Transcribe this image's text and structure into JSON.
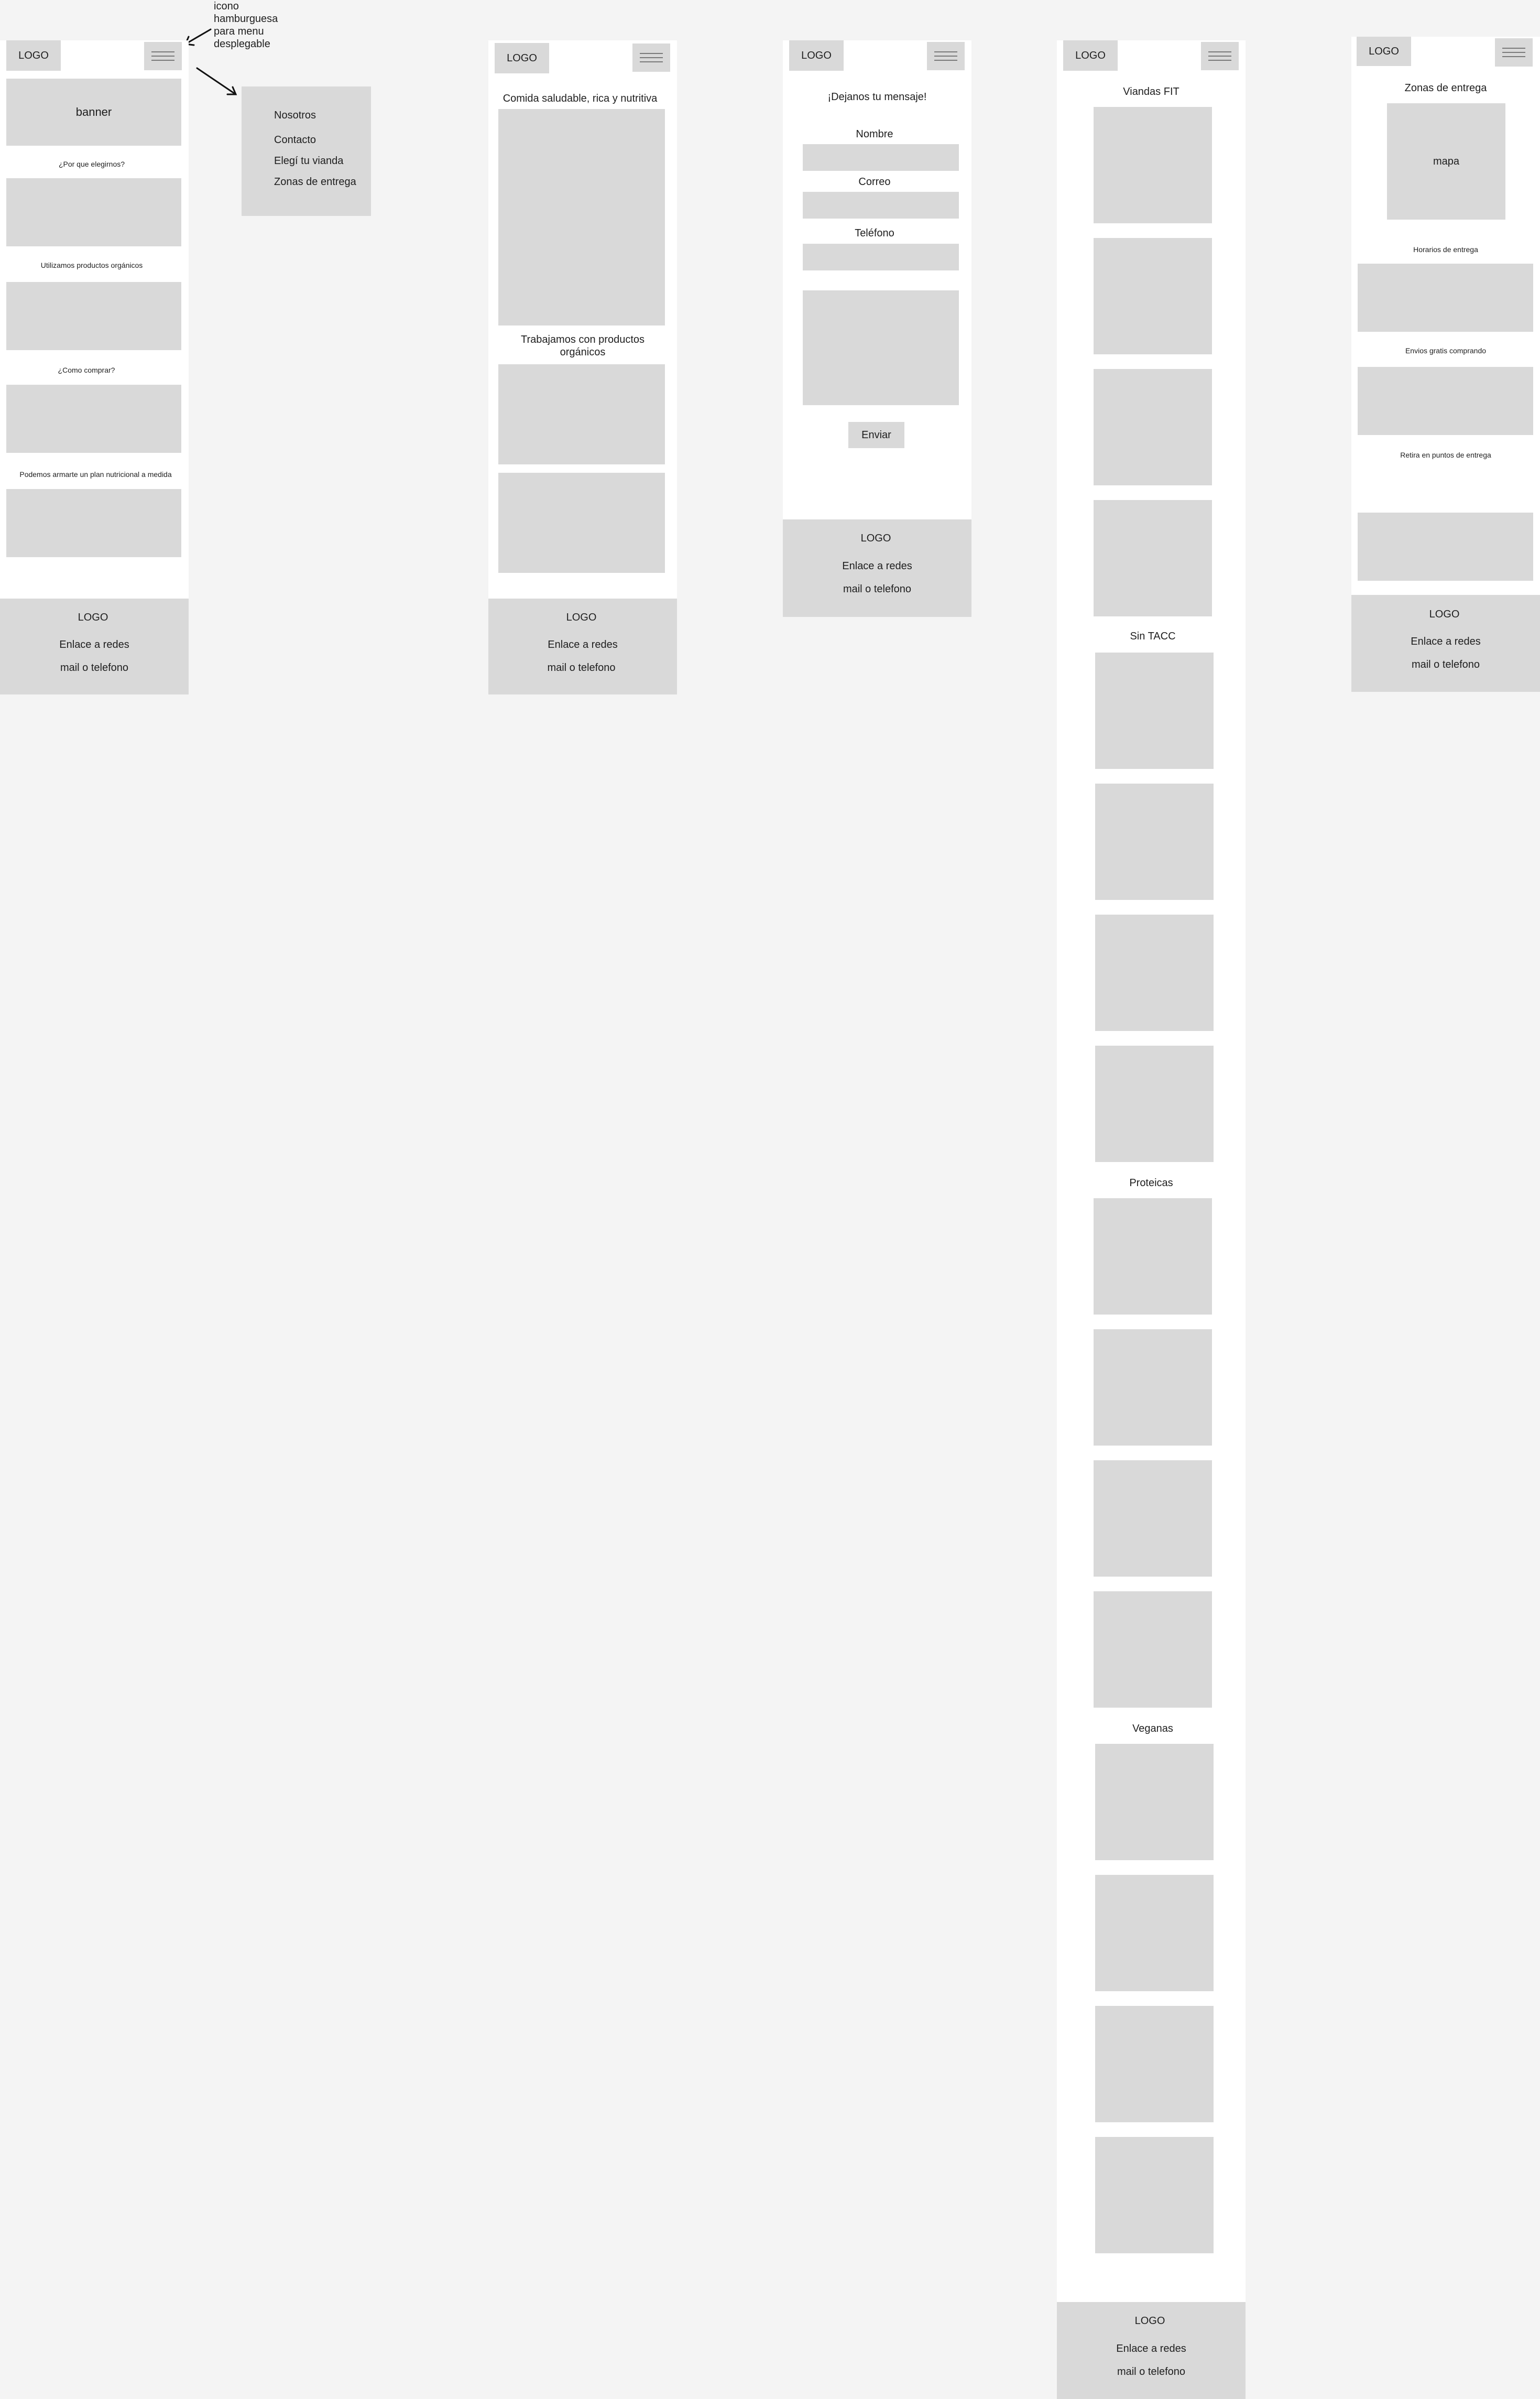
{
  "annotation": {
    "hamburger_note": [
      "icono",
      "hamburguesa",
      "para menu",
      "desplegable"
    ]
  },
  "home": {
    "logo": "LOGO",
    "banner": "banner",
    "sections": [
      "¿Por que elegirnos?",
      "Utilizamos productos orgánicos",
      "¿Como comprar?",
      "Podemos armarte un plan nutricional a medida"
    ],
    "footer": {
      "logo": "LOGO",
      "social": "Enlace a redes",
      "contact": "mail o telefono"
    }
  },
  "menu": {
    "items": [
      "Nosotros",
      "Contacto",
      "Elegí tu vianda",
      "Zonas de entrega"
    ]
  },
  "about": {
    "logo": "LOGO",
    "headline": "Comida saludable, rica y nutritiva",
    "subheading": [
      "Trabajamos con productos",
      "orgánicos"
    ],
    "footer": {
      "logo": "LOGO",
      "social": "Enlace a redes",
      "contact": "mail o telefono"
    }
  },
  "contact": {
    "logo": "LOGO",
    "title": "¡Dejanos tu mensaje!",
    "fields": {
      "name": "Nombre",
      "email": "Correo",
      "phone": "Teléfono"
    },
    "submit": "Enviar",
    "footer": {
      "logo": "LOGO",
      "social": "Enlace a redes",
      "contact": "mail o telefono"
    }
  },
  "catalog": {
    "logo": "LOGO",
    "categories": [
      "Viandas FIT",
      "Sin TACC",
      "Proteicas",
      "Veganas"
    ],
    "footer": {
      "logo": "LOGO",
      "social": "Enlace a redes",
      "contact": "mail o telefono"
    }
  },
  "delivery": {
    "logo": "LOGO",
    "title": "Zonas de entrega",
    "map": "mapa",
    "sections": [
      "Horarios de entrega",
      "Envios gratis comprando",
      "Retira en puntos de entrega"
    ],
    "footer": {
      "logo": "LOGO",
      "social": "Enlace a redes",
      "contact": "mail o telefono"
    }
  }
}
